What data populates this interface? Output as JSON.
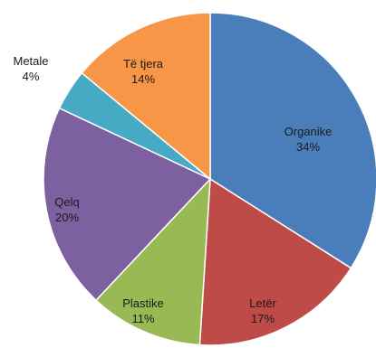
{
  "chart_data": {
    "type": "pie",
    "title": "",
    "categories": [
      "Organike",
      "Letër",
      "Plastike",
      "Qelq",
      "Metale",
      "Të tjera"
    ],
    "values": [
      34,
      17,
      11,
      20,
      4,
      14
    ],
    "value_labels": [
      "34%",
      "17%",
      "11%",
      "20%",
      "4%",
      "14%"
    ],
    "colors": [
      "#4a7ebb",
      "#be4b48",
      "#98b954",
      "#7d60a0",
      "#46aac5",
      "#f79646"
    ],
    "start_angle_deg": 0,
    "direction": "clockwise",
    "legend": "none"
  }
}
